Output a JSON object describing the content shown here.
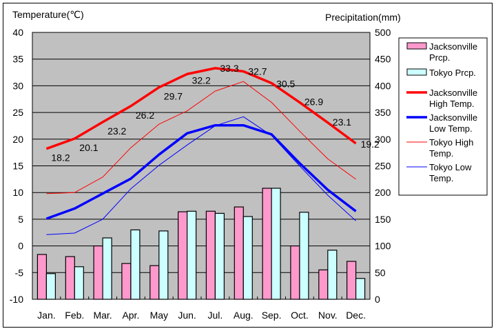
{
  "chart_data": {
    "type": "bar+line",
    "title": "",
    "ylabel_left": "Temperature(℃)",
    "ylabel_right": "Precipitation(mm)",
    "y_left_range": [
      -10,
      40
    ],
    "y_left_ticks": [
      "40",
      "35",
      "30",
      "25",
      "20",
      "15",
      "10",
      "5",
      "0",
      "-5",
      "-10"
    ],
    "y_right_range": [
      0,
      500
    ],
    "y_right_ticks": [
      "500",
      "450",
      "400",
      "350",
      "300",
      "250",
      "200",
      "150",
      "100",
      "50",
      "0"
    ],
    "categories": [
      "Jan.",
      "Feb.",
      "Mar.",
      "Apr.",
      "May",
      "Jun.",
      "Jul.",
      "Aug.",
      "Sep.",
      "Oct.",
      "Nov.",
      "Dec."
    ],
    "grid": true,
    "legend_position": "right",
    "bar_series": [
      {
        "name": "Jacksonville Prcp.",
        "legend": [
          "Jacksonville",
          "Prcp."
        ],
        "color": "#ff99cc",
        "axis": "right",
        "values": [
          84,
          80,
          100,
          67,
          63,
          164,
          165,
          173,
          208,
          100,
          55,
          71
        ]
      },
      {
        "name": "Tokyo Prcp.",
        "legend": [
          "Tokyo Prcp."
        ],
        "color": "#ccffff",
        "axis": "right",
        "values": [
          48,
          61,
          115,
          130,
          128,
          165,
          161,
          155,
          208,
          163,
          92,
          39
        ]
      }
    ],
    "line_series": [
      {
        "name": "Jacksonville High Temp.",
        "legend": [
          "Jacksonville",
          "High Temp."
        ],
        "color": "#ff0000",
        "width": "thick",
        "axis": "left",
        "values": [
          18.2,
          20.1,
          23.2,
          26.2,
          29.7,
          32.2,
          33.3,
          32.7,
          30.5,
          26.9,
          23.1,
          19.2
        ],
        "labeled": true
      },
      {
        "name": "Jacksonville Low Temp.",
        "legend": [
          "Jacksonville",
          "Low Temp."
        ],
        "color": "#0000ff",
        "width": "thick",
        "axis": "left",
        "values": [
          5.1,
          7.0,
          9.8,
          12.6,
          17.1,
          21.1,
          22.6,
          22.6,
          20.9,
          15.5,
          10.5,
          6.5
        ],
        "labeled": false
      },
      {
        "name": "Tokyo High Temp.",
        "legend": [
          "Tokyo High",
          "Temp."
        ],
        "color": "#ff0000",
        "width": "thin",
        "axis": "left",
        "values": [
          9.8,
          10.0,
          12.9,
          18.4,
          22.8,
          25.3,
          29.0,
          30.8,
          26.9,
          21.5,
          16.3,
          12.5
        ],
        "labeled": false
      },
      {
        "name": "Tokyo Low Temp.",
        "legend": [
          "Tokyo Low",
          "Temp."
        ],
        "color": "#0000ff",
        "width": "thin",
        "axis": "left",
        "values": [
          2.1,
          2.4,
          5.0,
          10.7,
          15.1,
          18.9,
          22.5,
          24.2,
          20.7,
          15.0,
          9.5,
          4.7
        ],
        "labeled": false
      }
    ],
    "data_labels": [
      "18.2",
      "20.1",
      "23.2",
      "26.2",
      "29.7",
      "32.2",
      "33.3",
      "32.7",
      "30.5",
      "26.9",
      "23.1",
      "19.2"
    ]
  },
  "colors": {
    "plot_background": "#c0c0c0",
    "gridline": "#000000"
  }
}
